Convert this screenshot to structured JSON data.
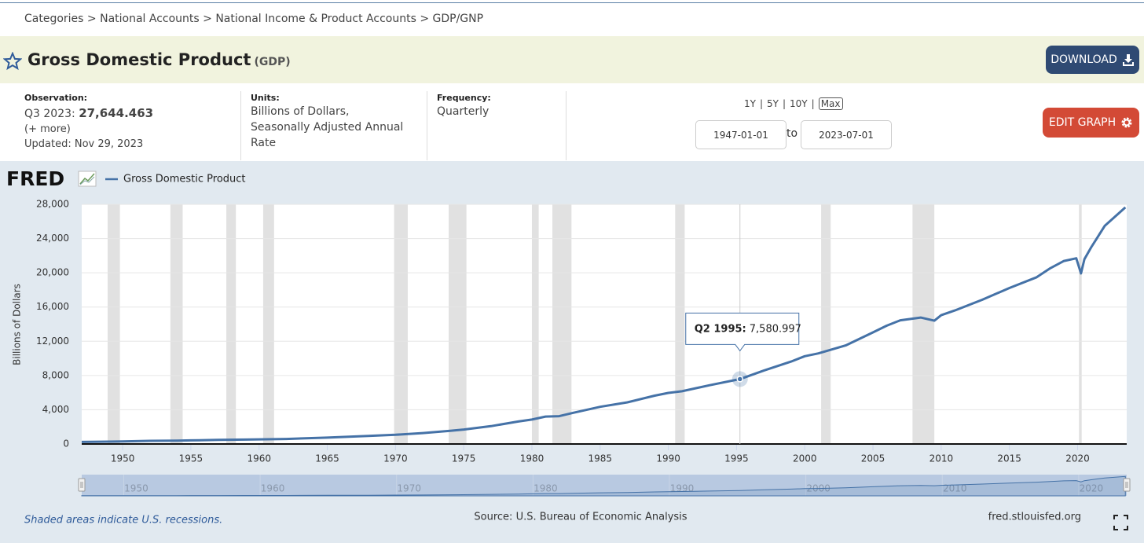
{
  "breadcrumb": "Categories > National Accounts > National Income & Product Accounts > GDP/GNP",
  "header": {
    "title": "Gross Domestic Product",
    "code": "(GDP)",
    "download": "DOWNLOAD"
  },
  "info": {
    "observation_label": "Observation:",
    "observation_period": "Q3 2023:",
    "observation_value": "27,644.463",
    "more": "(+ more)",
    "updated": "Updated: Nov 29, 2023",
    "units_label": "Units:",
    "units": "Billions of Dollars, Seasonally Adjusted Annual Rate",
    "frequency_label": "Frequency:",
    "frequency": "Quarterly"
  },
  "controls": {
    "ranges": [
      "1Y",
      "5Y",
      "10Y",
      "Max"
    ],
    "separator": "|",
    "start": "1947-01-01",
    "to": "to",
    "end": "2023-07-01",
    "edit": "EDIT GRAPH"
  },
  "chart_data": {
    "type": "line",
    "logo": "FRED",
    "ylabel": "Billions of Dollars",
    "x": [
      1947,
      1949,
      1950,
      1952,
      1954,
      1955,
      1957,
      1959,
      1960,
      1962,
      1965,
      1968,
      1970,
      1972,
      1974,
      1975,
      1977,
      1979,
      1980,
      1981,
      1982,
      1983,
      1985,
      1987,
      1989,
      1990,
      1991,
      1993,
      1995.25,
      1997,
      1999,
      2000,
      2001,
      2003,
      2005,
      2006,
      2007,
      2008.5,
      2009.5,
      2010,
      2011,
      2013,
      2015,
      2017,
      2018,
      2019,
      2019.9,
      2020.25,
      2020.5,
      2021,
      2022,
      2023.5
    ],
    "series": [
      {
        "name": "Gross Domestic Product",
        "color": "#4572a7",
        "values": [
          243,
          272,
          300,
          367,
          390,
          426,
          474,
          510,
          543,
          586,
          743,
          942,
          1073,
          1280,
          1545,
          1685,
          2086,
          2627,
          2857,
          3207,
          3253,
          3634,
          4339,
          4870,
          5642,
          5963,
          6158,
          6858,
          7580.997,
          8577,
          9631,
          10251,
          10582,
          11512,
          13039,
          13816,
          14452,
          14769,
          14400,
          15049,
          15600,
          16843,
          18225,
          19477,
          20533,
          21381,
          21694,
          19935,
          21600,
          23000,
          25500,
          27644
        ]
      }
    ],
    "recessions": [
      [
        1948.9,
        1949.8
      ],
      [
        1953.5,
        1954.4
      ],
      [
        1957.6,
        1958.3
      ],
      [
        1960.3,
        1961.1
      ],
      [
        1969.9,
        1970.9
      ],
      [
        1973.9,
        1975.2
      ],
      [
        1980.0,
        1980.5
      ],
      [
        1981.5,
        1982.9
      ],
      [
        1990.5,
        1991.2
      ],
      [
        2001.2,
        2001.9
      ],
      [
        2007.9,
        2009.5
      ],
      [
        2020.1,
        2020.3
      ]
    ],
    "recession_color": "#e1e1e1",
    "xlim": [
      1947,
      2023.6
    ],
    "xticks": [
      1950,
      1955,
      1960,
      1965,
      1970,
      1975,
      1980,
      1985,
      1990,
      1995,
      2000,
      2005,
      2010,
      2015,
      2020
    ],
    "ylim": [
      0,
      28000
    ],
    "yticks": [
      0,
      {
        "value": 4000,
        "label": "4,000"
      },
      {
        "value": 8000,
        "label": "8,000"
      },
      {
        "value": 12000,
        "label": "12,000"
      },
      {
        "value": 16000,
        "label": "16,000"
      },
      {
        "value": 20000,
        "label": "20,000"
      },
      {
        "value": 24000,
        "label": "24,000"
      },
      {
        "value": 28000,
        "label": "28,000"
      }
    ],
    "grid": true,
    "tooltip": {
      "label": "Q2 1995:",
      "x": 1995.25,
      "value": 7580.997,
      "value_label": "7,580.997"
    },
    "navigator_xlim": [
      1946,
      2022.6
    ],
    "navigator_xticks": [
      1950,
      1960,
      1970,
      1980,
      1990,
      2000,
      2010,
      2020
    ]
  },
  "footer": {
    "note": "Shaded areas indicate U.S. recessions.",
    "source": "Source: U.S. Bureau of Economic Analysis",
    "site": "fred.stlouisfed.org"
  }
}
